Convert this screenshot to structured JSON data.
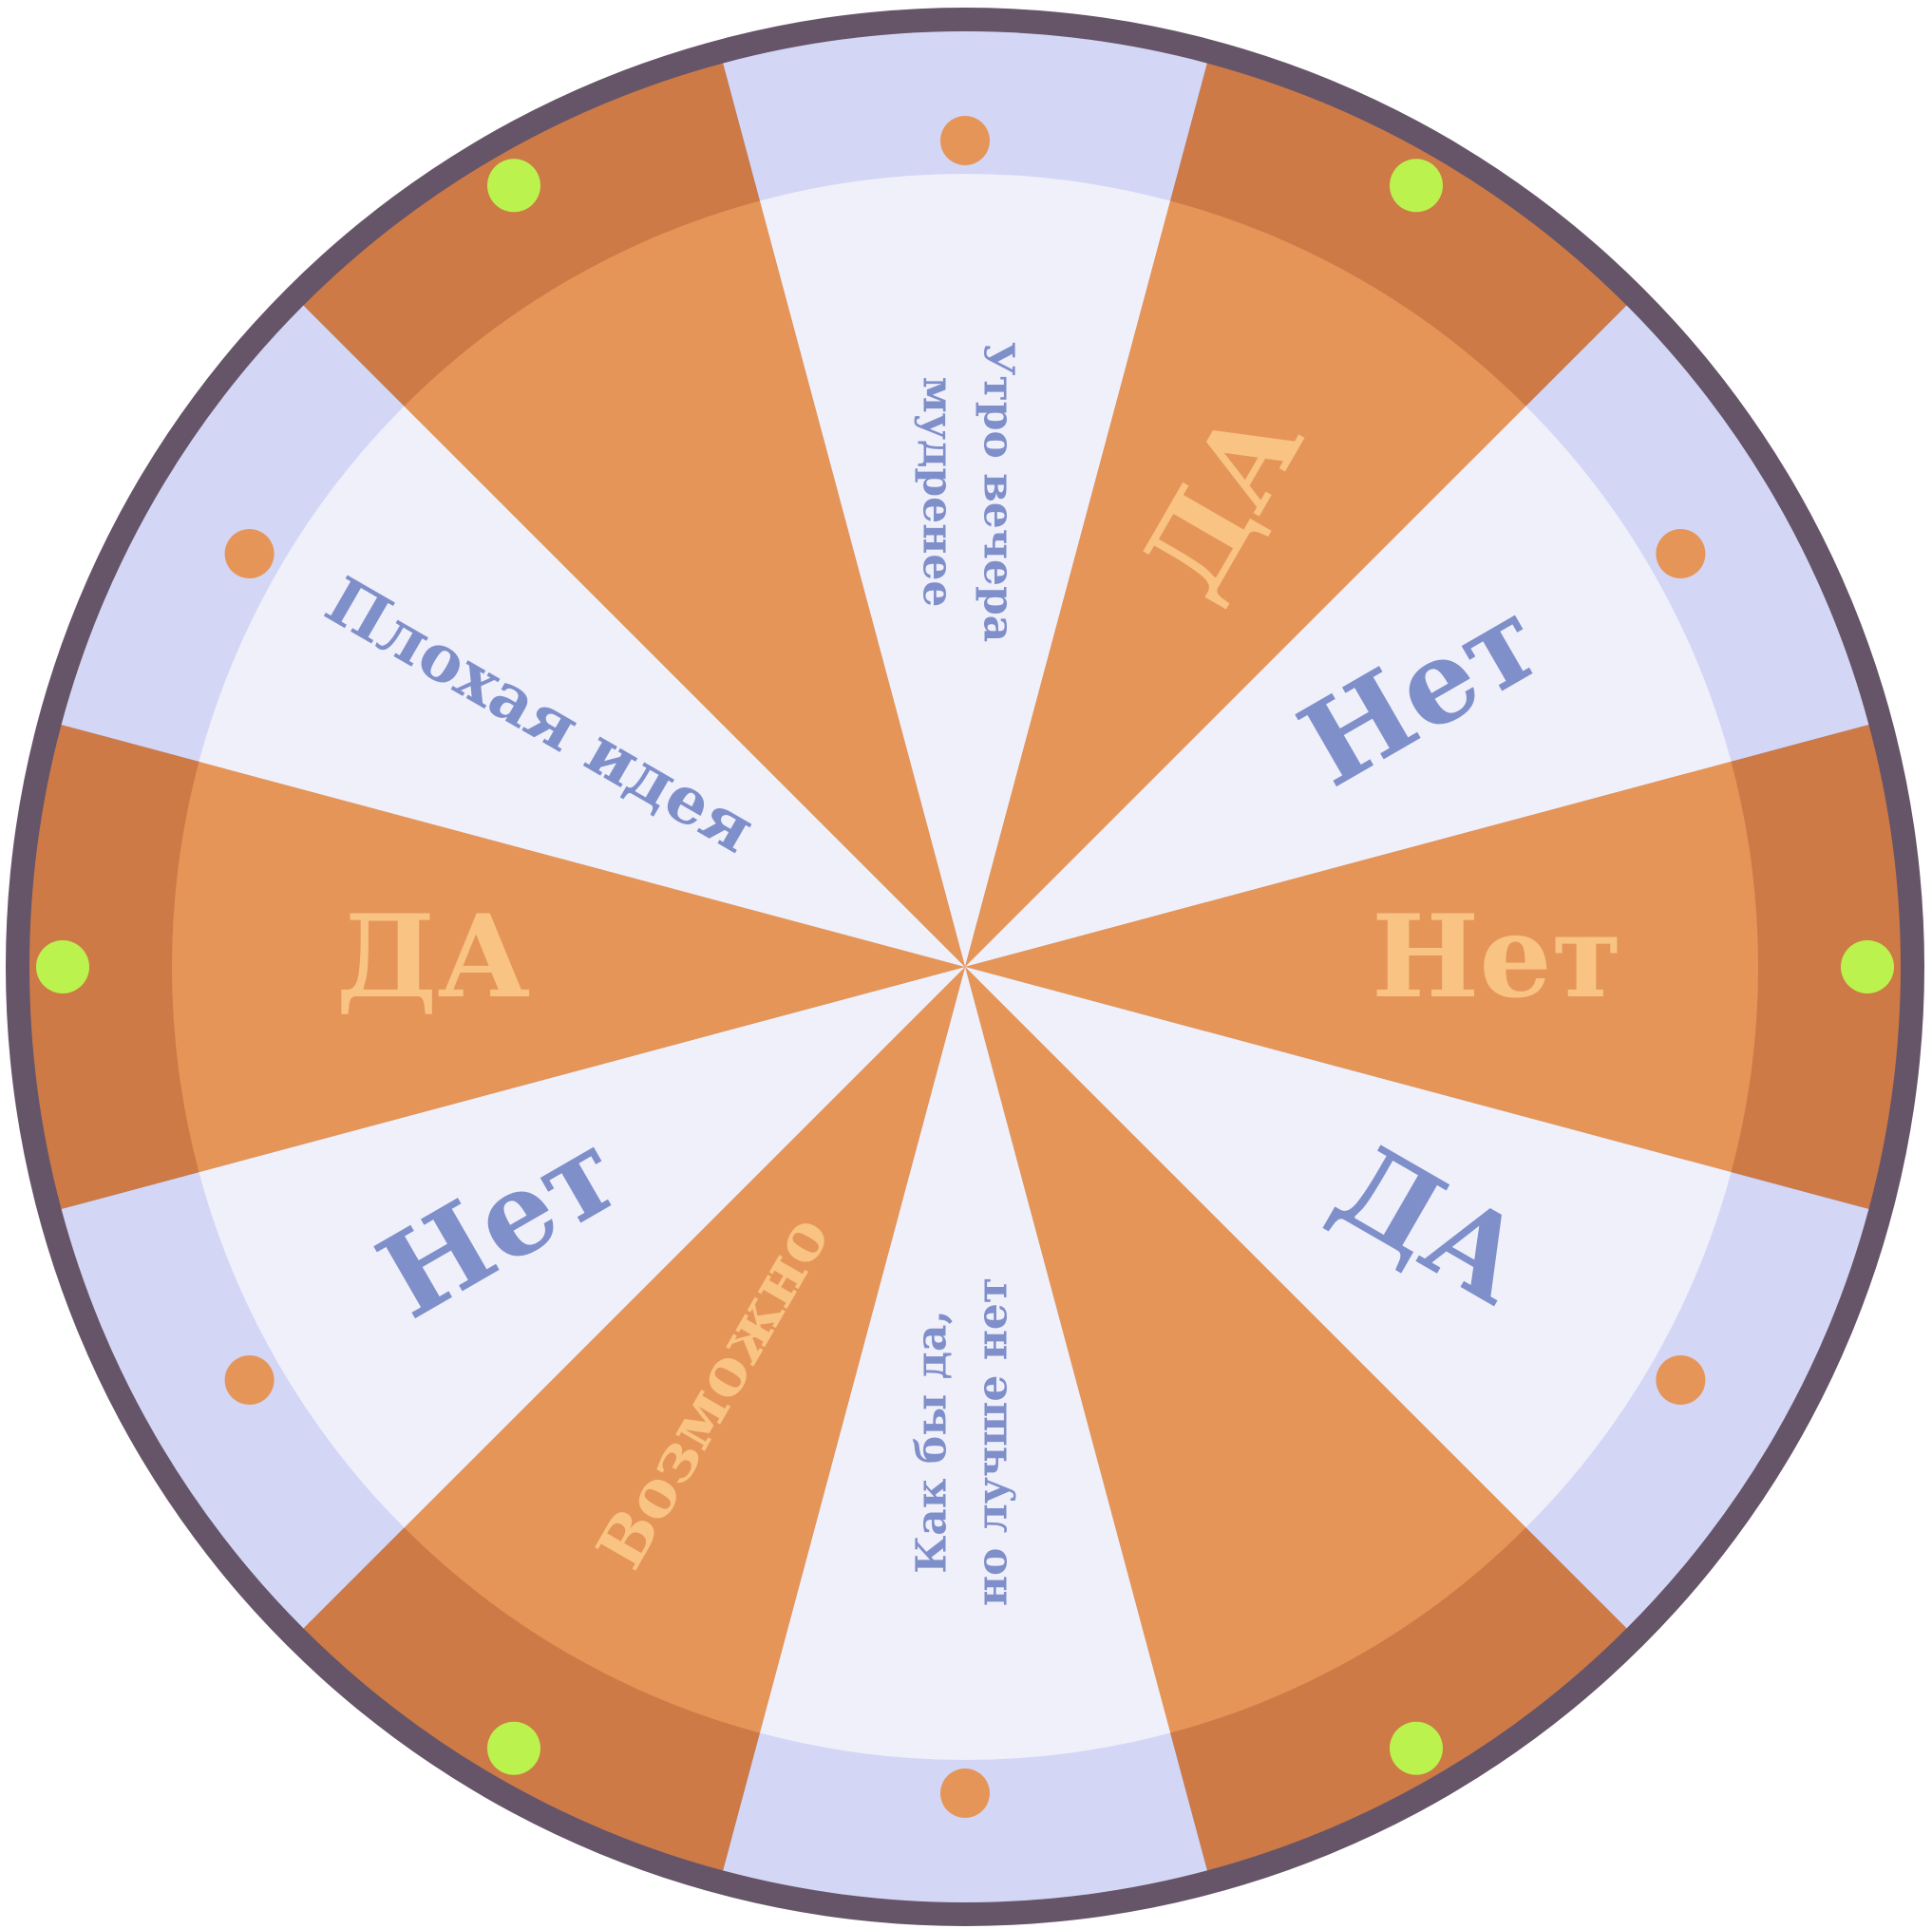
{
  "wheel": {
    "sectors": [
      {
        "label": "Утро вечера",
        "label2": "мудренее",
        "fill": "light",
        "text_color": "#7f8fca"
      },
      {
        "label": "ДА",
        "label2": "",
        "fill": "orange",
        "text_color": "#f8c383"
      },
      {
        "label": "Нет",
        "label2": "",
        "fill": "light",
        "text_color": "#7f8fca"
      },
      {
        "label": "Нет",
        "label2": "",
        "fill": "orange",
        "text_color": "#f8c383"
      },
      {
        "label": "ДА",
        "label2": "",
        "fill": "light",
        "text_color": "#7f8fca"
      },
      {
        "label": "",
        "label2": "",
        "fill": "orange",
        "text_color": "#f8c383"
      },
      {
        "label": "Как бы да,",
        "label2": "но лучше нет",
        "fill": "light",
        "text_color": "#7f8fca"
      },
      {
        "label": "Возможно",
        "label2": "",
        "fill": "orange",
        "text_color": "#f8c383"
      },
      {
        "label": "Нет",
        "label2": "",
        "fill": "light",
        "text_color": "#7f8fca"
      },
      {
        "label": "ДА",
        "label2": "",
        "fill": "orange",
        "text_color": "#f8c383"
      },
      {
        "label": "Плохая идея",
        "label2": "",
        "fill": "light",
        "text_color": "#7f8fca"
      },
      {
        "label": "",
        "label2": "",
        "fill": "orange",
        "text_color": "#f8c383"
      }
    ],
    "colors": {
      "rim": "#665468",
      "orange_inner": "#e69558",
      "orange_outer": "#cd7a47",
      "light_inner": "#f0f0fb",
      "light_outer": "#d4d6f6",
      "peg_orange": "#e69558",
      "peg_green": "#bbf24e"
    }
  }
}
